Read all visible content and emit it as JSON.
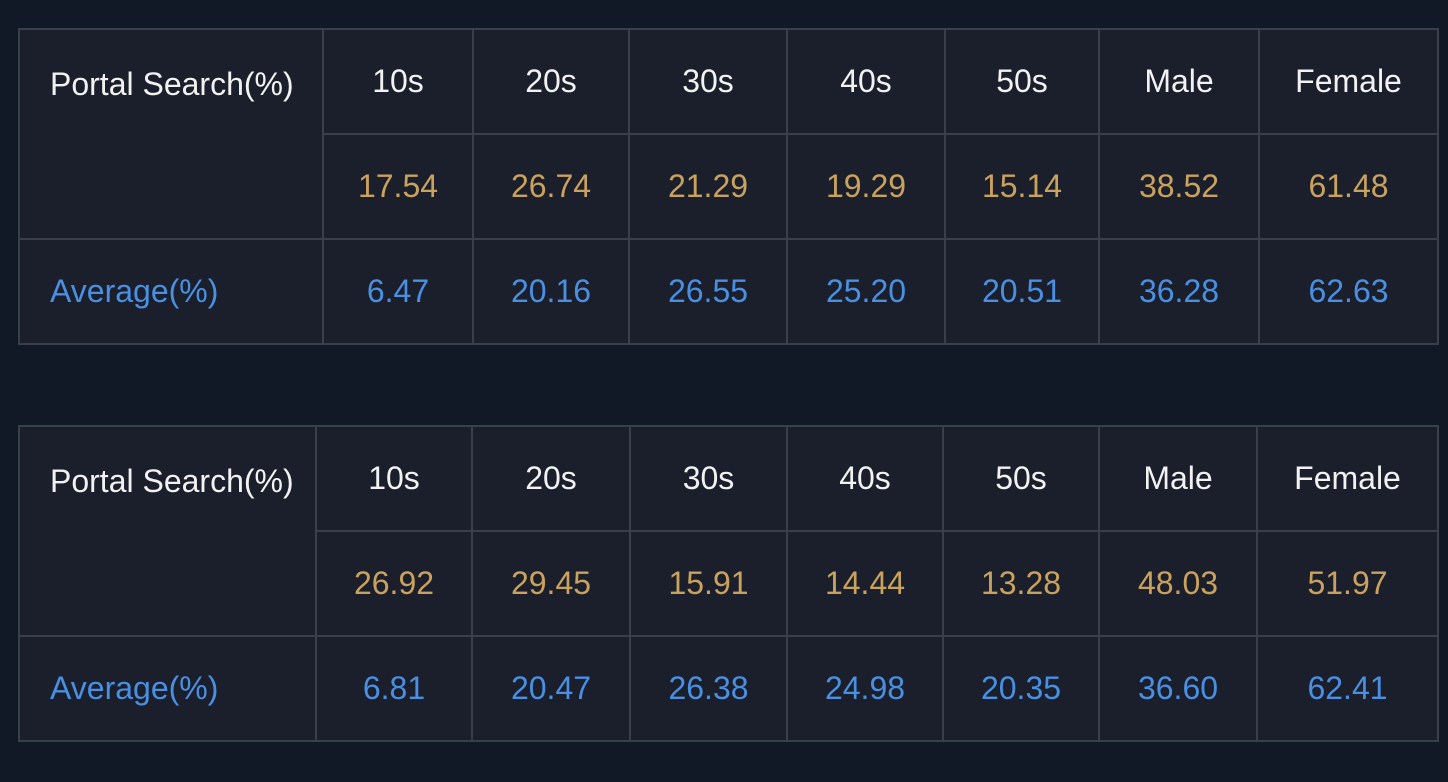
{
  "tables": [
    {
      "label": "Portal Search(%)",
      "columns": [
        "10s",
        "20s",
        "30s",
        "40s",
        "50s",
        "Male",
        "Female"
      ],
      "values": [
        "17.54",
        "26.74",
        "21.29",
        "19.29",
        "15.14",
        "38.52",
        "61.48"
      ],
      "average_label": "Average(%)",
      "average": [
        "6.47",
        "20.16",
        "26.55",
        "25.20",
        "20.51",
        "36.28",
        "62.63"
      ]
    },
    {
      "label": "Portal Search(%)",
      "columns": [
        "10s",
        "20s",
        "30s",
        "40s",
        "50s",
        "Male",
        "Female"
      ],
      "values": [
        "26.92",
        "29.45",
        "15.91",
        "14.44",
        "13.28",
        "48.03",
        "51.97"
      ],
      "average_label": "Average(%)",
      "average": [
        "6.81",
        "20.47",
        "26.38",
        "24.98",
        "20.35",
        "36.60",
        "62.41"
      ]
    }
  ]
}
